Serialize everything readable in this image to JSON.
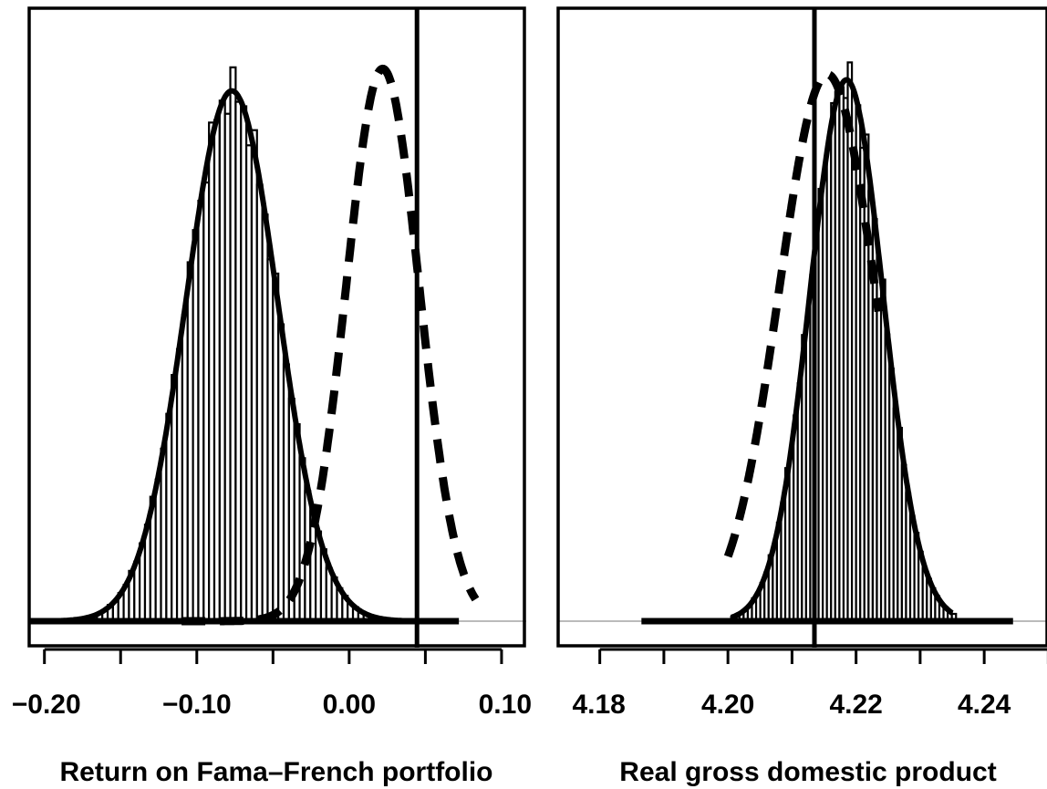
{
  "chart_data": [
    {
      "type": "histogram",
      "xlabel": "Return on Fama–French portfolio",
      "ylabel": "",
      "title": "",
      "xlim": [
        -0.21,
        0.115
      ],
      "ylim": [
        0,
        1.07
      ],
      "xticks": [
        -0.2,
        -0.15,
        -0.1,
        -0.05,
        0.0,
        0.05,
        0.1
      ],
      "xtick_labels": [
        "−0.20",
        "−0.10",
        "0.00",
        "0.10"
      ],
      "xtick_label_values": [
        -0.2,
        -0.1,
        0.0,
        0.1
      ],
      "grid": false,
      "legend": "none",
      "histogram": {
        "mean": -0.077,
        "sd": 0.03,
        "bin_width": 0.0035,
        "range": [
          -0.19,
          0.035
        ]
      },
      "density_curve": {
        "mean": -0.077,
        "sd": 0.03,
        "peak": 0.96,
        "style": "solid"
      },
      "prior_curve": {
        "mean": 0.022,
        "sd": 0.024,
        "peak": 1.0,
        "style": "dashed",
        "range": [
          -0.11,
          0.083
        ]
      },
      "vertical_line": 0.0445,
      "baseline_segment": [
        -0.21,
        0.072
      ]
    },
    {
      "type": "histogram",
      "xlabel": "Real gross domestic product",
      "ylabel": "",
      "title": "",
      "xlim": [
        4.1735,
        4.2498
      ],
      "ylim": [
        0,
        1.07
      ],
      "xticks": [
        4.18,
        4.19,
        4.2,
        4.21,
        4.22,
        4.23,
        4.24,
        4.25
      ],
      "xtick_labels": [
        "4.18",
        "4.20",
        "4.22",
        "4.24"
      ],
      "xtick_label_values": [
        4.18,
        4.2,
        4.22,
        4.24
      ],
      "grid": false,
      "legend": "none",
      "histogram": {
        "mean": 4.2185,
        "sd": 0.0057,
        "bin_width": 0.00065,
        "range": [
          4.2005,
          4.235
        ]
      },
      "density_curve": {
        "mean": 4.2185,
        "sd": 0.0057,
        "peak": 0.98,
        "style": "solid"
      },
      "prior_curve": {
        "mean": 4.2155,
        "sd": 0.0075,
        "peak": 0.99,
        "style": "dashed",
        "range": [
          4.2,
          4.2235
        ]
      },
      "vertical_line": 4.2135,
      "baseline_segment": [
        4.1865,
        4.2445
      ]
    }
  ]
}
